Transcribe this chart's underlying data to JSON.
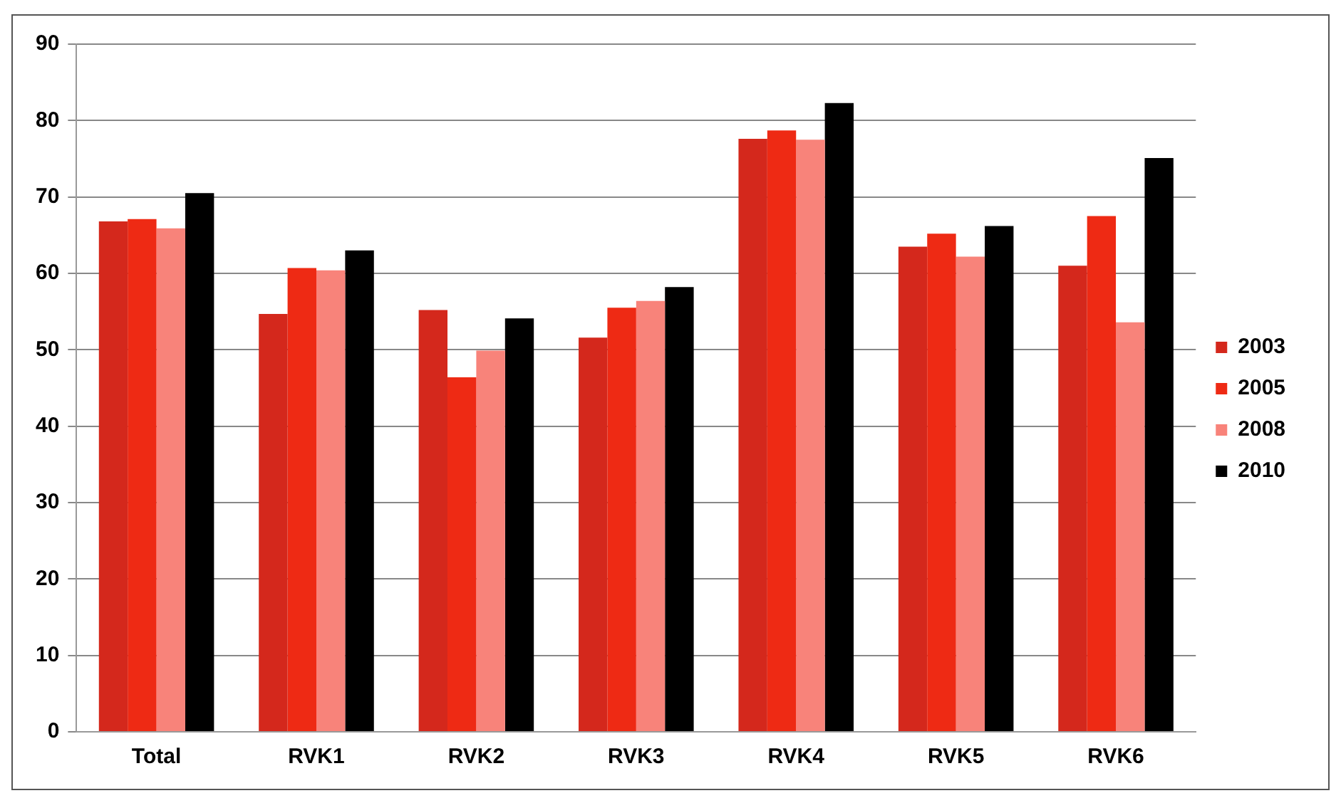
{
  "chart_data": {
    "type": "bar",
    "categories": [
      "Total",
      "RVK1",
      "RVK2",
      "RVK3",
      "RVK4",
      "RVK5",
      "RVK6"
    ],
    "series": [
      {
        "name": "2003",
        "color": "#d4281c",
        "values": [
          66.8,
          54.7,
          55.2,
          51.6,
          77.6,
          63.5,
          61.0
        ]
      },
      {
        "name": "2005",
        "color": "#ee2a14",
        "values": [
          67.1,
          60.7,
          46.4,
          55.5,
          78.7,
          65.2,
          67.5
        ]
      },
      {
        "name": "2008",
        "color": "#f8837a",
        "values": [
          65.9,
          60.4,
          49.9,
          56.4,
          77.5,
          62.2,
          53.6
        ]
      },
      {
        "name": "2010",
        "color": "#000000",
        "values": [
          70.5,
          63.0,
          54.1,
          58.2,
          82.3,
          66.2,
          75.1
        ]
      }
    ],
    "ylim": [
      0,
      90
    ],
    "yticks": [
      0,
      10,
      20,
      30,
      40,
      50,
      60,
      70,
      80,
      90
    ],
    "grid": "y",
    "legend": "right"
  }
}
